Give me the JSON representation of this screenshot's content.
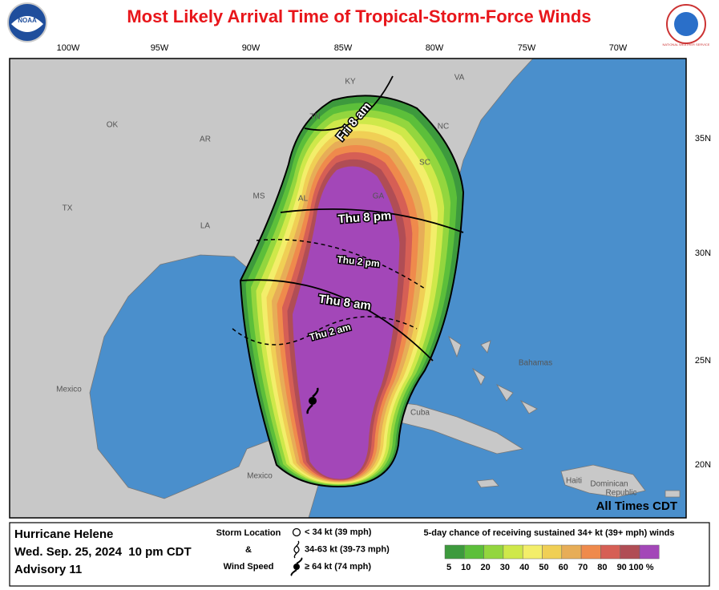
{
  "header": {
    "title": "Most Likely Arrival Time of Tropical-Storm-Force Winds"
  },
  "logos": {
    "left": "NOAA",
    "right": "NATIONAL WEATHER SERVICE"
  },
  "map": {
    "longitudes": [
      "100W",
      "95W",
      "90W",
      "85W",
      "80W",
      "75W",
      "70W"
    ],
    "latitudes": [
      "35N",
      "30N",
      "25N",
      "20N"
    ],
    "states": [
      "KY",
      "VA",
      "TN",
      "NC",
      "OK",
      "AR",
      "SC",
      "MS",
      "AL",
      "GA",
      "TX",
      "LA"
    ],
    "places": [
      "Mexico",
      "Mexico",
      "Cuba",
      "Bahamas",
      "Haiti",
      "Dominican",
      "Republic"
    ],
    "time_labels": [
      "Fri 8 am",
      "Thu 8 pm",
      "Thu 2 pm",
      "Thu 8 am",
      "Thu 2 am"
    ],
    "note": "All Times CDT"
  },
  "footer": {
    "storm_name": "Hurricane Helene",
    "issued": "Wed. Sep. 25, 2024  10 pm CDT",
    "advisory": "Advisory 11",
    "legend_title_1": "Storm Location",
    "legend_amp": "&",
    "legend_title_2": "Wind Speed",
    "symbols": [
      "< 34 kt (39 mph)",
      "34-63 kt (39-73 mph)",
      "≥ 64 kt (74 mph)"
    ],
    "scale_title": "5-day chance of receiving sustained 34+ kt (39+ mph) winds",
    "scale_labels": [
      "5",
      "10",
      "20",
      "30",
      "40",
      "50",
      "60",
      "70",
      "80",
      "90",
      "100 %"
    ]
  }
}
